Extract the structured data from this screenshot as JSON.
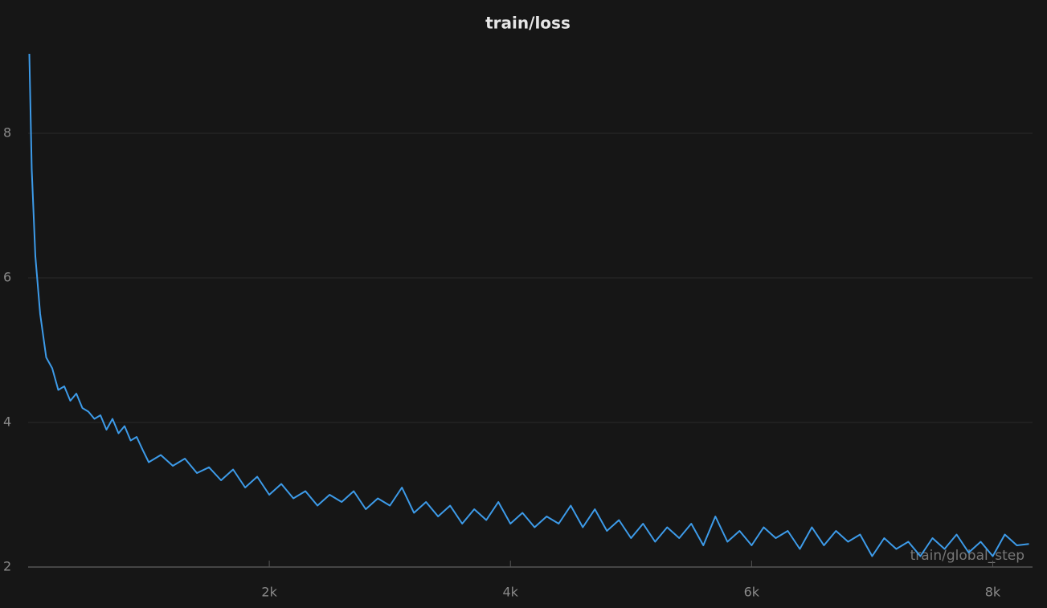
{
  "chart_data": {
    "type": "line",
    "title": "train/loss",
    "x_label": "train/global_step",
    "color": "#3d9be9",
    "grid": true,
    "xlim": [
      0,
      8330
    ],
    "ylim": [
      2,
      9.3
    ],
    "xticks": [
      {
        "value": 2000,
        "label": "2k"
      },
      {
        "value": 4000,
        "label": "4k"
      },
      {
        "value": 6000,
        "label": "6k"
      },
      {
        "value": 8000,
        "label": "8k"
      }
    ],
    "yticks": [
      2,
      4,
      6,
      8
    ],
    "x": [
      10,
      30,
      60,
      100,
      150,
      200,
      250,
      300,
      350,
      400,
      450,
      500,
      550,
      600,
      650,
      700,
      750,
      800,
      850,
      900,
      950,
      1000,
      1100,
      1200,
      1300,
      1400,
      1500,
      1600,
      1700,
      1800,
      1900,
      2000,
      2100,
      2200,
      2300,
      2400,
      2500,
      2600,
      2700,
      2800,
      2900,
      3000,
      3100,
      3200,
      3300,
      3400,
      3500,
      3600,
      3700,
      3800,
      3900,
      4000,
      4100,
      4200,
      4300,
      4400,
      4500,
      4600,
      4700,
      4800,
      4900,
      5000,
      5100,
      5200,
      5300,
      5400,
      5500,
      5600,
      5700,
      5800,
      5900,
      6000,
      6100,
      6200,
      6300,
      6400,
      6500,
      6600,
      6700,
      6800,
      6900,
      7000,
      7100,
      7200,
      7300,
      7400,
      7500,
      7600,
      7700,
      7800,
      7900,
      8000,
      8100,
      8200,
      8300
    ],
    "values": [
      9.1,
      7.5,
      6.3,
      5.5,
      4.9,
      4.75,
      4.45,
      4.5,
      4.3,
      4.4,
      4.2,
      4.15,
      4.05,
      4.1,
      3.9,
      4.05,
      3.85,
      3.95,
      3.75,
      3.8,
      3.62,
      3.45,
      3.55,
      3.4,
      3.5,
      3.3,
      3.38,
      3.2,
      3.35,
      3.1,
      3.25,
      3.0,
      3.15,
      2.95,
      3.05,
      2.85,
      3.0,
      2.9,
      3.05,
      2.8,
      2.95,
      2.85,
      3.1,
      2.75,
      2.9,
      2.7,
      2.85,
      2.6,
      2.8,
      2.65,
      2.9,
      2.6,
      2.75,
      2.55,
      2.7,
      2.6,
      2.85,
      2.55,
      2.8,
      2.5,
      2.65,
      2.4,
      2.6,
      2.35,
      2.55,
      2.4,
      2.6,
      2.3,
      2.7,
      2.35,
      2.5,
      2.3,
      2.55,
      2.4,
      2.5,
      2.25,
      2.55,
      2.3,
      2.5,
      2.35,
      2.45,
      2.15,
      2.4,
      2.25,
      2.35,
      2.15,
      2.4,
      2.25,
      2.45,
      2.2,
      2.35,
      2.15,
      2.45,
      2.3,
      2.32
    ]
  }
}
